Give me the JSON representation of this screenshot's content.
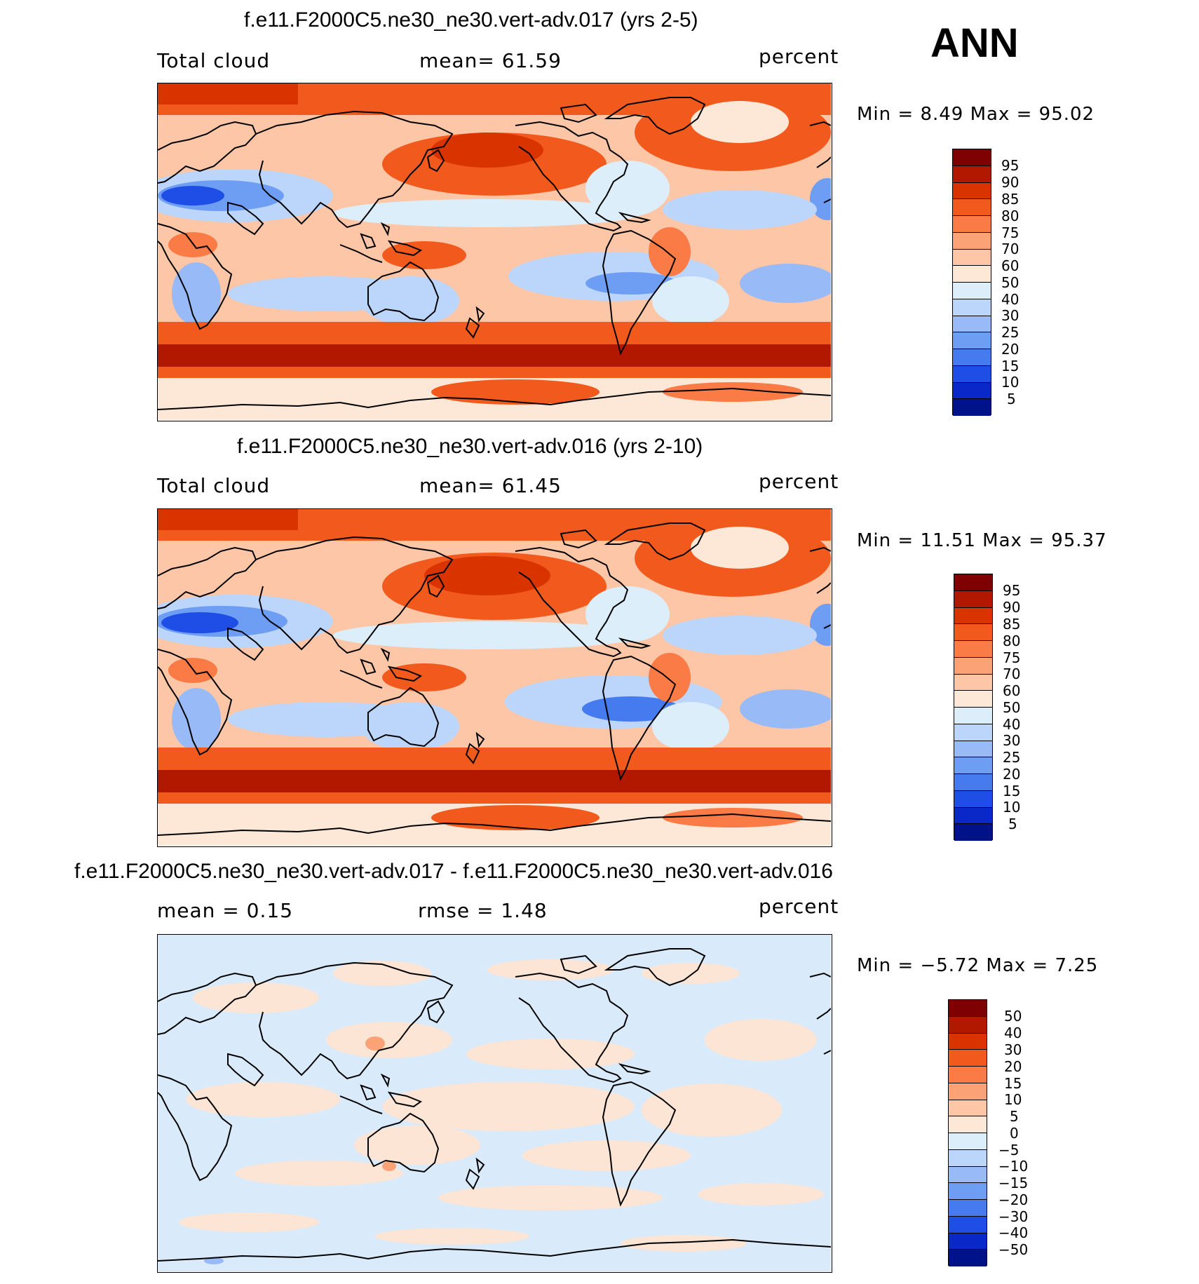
{
  "season": "ANN",
  "panels": [
    {
      "title": "f.e11.F2000C5.ne30_ne30.vert-adv.017 (yrs 2-5)",
      "left_label": "Total  cloud",
      "center_label": "mean=   61.59",
      "units": "percent",
      "minmax": "Min  =     8.49  Max  =     95.02",
      "colorbar_labels": [
        "95",
        "90",
        "85",
        "80",
        "75",
        "70",
        "60",
        "50",
        "40",
        "30",
        "25",
        "20",
        "15",
        "10",
        "5"
      ]
    },
    {
      "title": "f.e11.F2000C5.ne30_ne30.vert-adv.016 (yrs 2-10)",
      "left_label": "Total  cloud",
      "center_label": "mean=   61.45",
      "units": "percent",
      "minmax": "Min  =    11.51  Max  =     95.37",
      "colorbar_labels": [
        "95",
        "90",
        "85",
        "80",
        "75",
        "70",
        "60",
        "50",
        "40",
        "30",
        "25",
        "20",
        "15",
        "10",
        "5"
      ]
    },
    {
      "title": "f.e11.F2000C5.ne30_ne30.vert-adv.017 - f.e11.F2000C5.ne30_ne30.vert-adv.016",
      "left_label": "mean  =     0.15",
      "center_label": "rmse  =     1.48",
      "units": "percent",
      "minmax": "Min  =   −5.72  Max  =     7.25",
      "colorbar_labels": [
        "50",
        "40",
        "30",
        "20",
        "15",
        "10",
        "5",
        "0",
        "−5",
        "−10",
        "−15",
        "−20",
        "−30",
        "−40",
        "−50"
      ]
    }
  ],
  "colors": {
    "colorbar": [
      "#7f0000",
      "#b21800",
      "#d93300",
      "#f25a1d",
      "#fa7b45",
      "#fca277",
      "#fdc6a7",
      "#fde8d8",
      "#dceefa",
      "#bcd5fa",
      "#98bbf7",
      "#6e9df4",
      "#467bf0",
      "#1e4ee5",
      "#0a28c8",
      "#00128a"
    ],
    "diff_positive": "#fde5d5",
    "diff_negative": "#d9eafb",
    "coast": "#000000"
  },
  "chart_data": {
    "type": "heatmap",
    "title": "Total cloud (percent), annual mean",
    "maps": [
      {
        "name": "f.e11.F2000C5.ne30_ne30.vert-adv.017 (yrs 2-5)",
        "mean": 61.59,
        "min": 8.49,
        "max": 95.02,
        "levels": [
          5,
          10,
          15,
          20,
          25,
          30,
          40,
          50,
          60,
          70,
          75,
          80,
          85,
          90,
          95
        ]
      },
      {
        "name": "f.e11.F2000C5.ne30_ne30.vert-adv.016 (yrs 2-10)",
        "mean": 61.45,
        "min": 11.51,
        "max": 95.37,
        "levels": [
          5,
          10,
          15,
          20,
          25,
          30,
          40,
          50,
          60,
          70,
          75,
          80,
          85,
          90,
          95
        ]
      },
      {
        "name": "f.e11.F2000C5.ne30_ne30.vert-adv.017 - f.e11.F2000C5.ne30_ne30.vert-adv.016",
        "mean": 0.15,
        "rmse": 1.48,
        "min": -5.72,
        "max": 7.25,
        "levels": [
          -50,
          -40,
          -30,
          -20,
          -15,
          -10,
          -5,
          0,
          5,
          10,
          15,
          20,
          30,
          40,
          50
        ]
      }
    ]
  }
}
